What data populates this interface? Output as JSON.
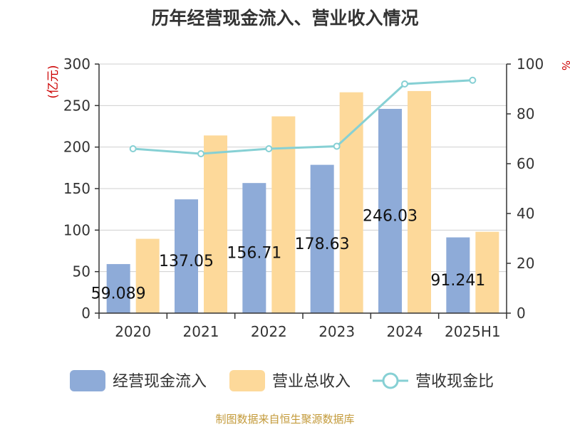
{
  "colors": {
    "cash_inflow": "#8eabd8",
    "total_revenue": "#fdd99a",
    "ratio_line": "#86d0d4",
    "grid": "#cfcfcf",
    "axis": "#333333",
    "unit_red": "#cc0000",
    "source_gold": "#c39a3a"
  },
  "chart_data": {
    "type": "bar",
    "title": "历年经营现金流入、营业收入情况",
    "left_unit": "(亿元)",
    "right_unit": "%",
    "categories": [
      "2020",
      "2021",
      "2022",
      "2023",
      "2024",
      "2025H1"
    ],
    "left_axis": {
      "min": 0,
      "max": 300,
      "ticks": [
        "0",
        "50",
        "100",
        "150",
        "200",
        "250",
        "300"
      ]
    },
    "right_axis": {
      "min": 0,
      "max": 100,
      "ticks": [
        "0",
        "20",
        "40",
        "60",
        "80",
        "100"
      ]
    },
    "grid": true,
    "legend_position": "bottom",
    "series": [
      {
        "name": "经营现金流入",
        "type": "bar",
        "axis": "left",
        "values": [
          59.09,
          137.05,
          156.71,
          178.63,
          246.03,
          91.24
        ],
        "labels": [
          "59.089",
          "137.05",
          "156.71",
          "178.63",
          "246.03",
          "91.241"
        ]
      },
      {
        "name": "营业总收入",
        "type": "bar",
        "axis": "left",
        "values": [
          89.5,
          214,
          237,
          266,
          267.5,
          98
        ]
      },
      {
        "name": "营收现金比",
        "type": "line",
        "axis": "right",
        "values": [
          66,
          64,
          66,
          67,
          92,
          93.5
        ]
      }
    ]
  },
  "source": "制图数据来自恒生聚源数据库"
}
